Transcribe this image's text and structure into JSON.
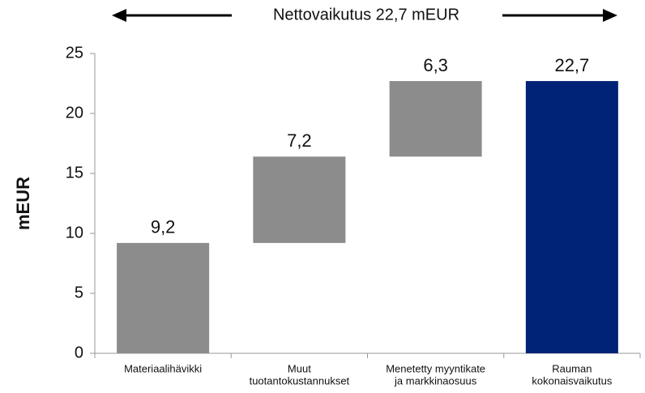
{
  "chart_data": {
    "type": "waterfall",
    "annotation": "Nettovaikutus 22,7 mEUR",
    "ylabel": "mEUR",
    "categories": [
      [
        "Materiaalihävikki"
      ],
      [
        "Muut",
        "tuotantokustannukset"
      ],
      [
        "Menetetty myyntikate",
        "ja markkinaosuus"
      ],
      [
        "Rauman",
        "kokonaisvaikutus"
      ]
    ],
    "values": [
      9.2,
      7.2,
      6.3,
      22.7
    ],
    "value_labels": [
      "9,2",
      "7,2",
      "6,3",
      "22,7"
    ],
    "totals": [
      false,
      false,
      false,
      true
    ],
    "colors": [
      "#8c8c8c",
      "#8c8c8c",
      "#8c8c8c",
      "#002277"
    ],
    "ylim": [
      0,
      25
    ],
    "yticks": [
      0,
      5,
      10,
      15,
      20,
      25
    ]
  }
}
